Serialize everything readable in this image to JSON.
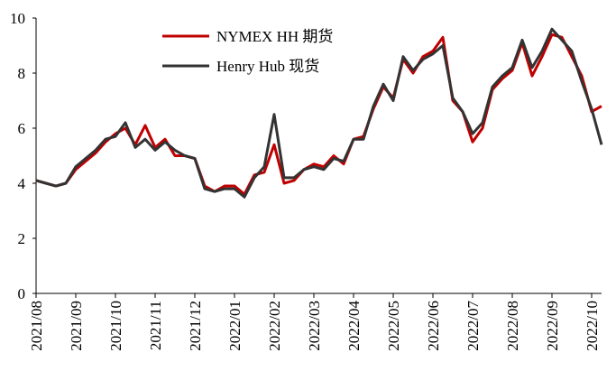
{
  "chart_data": {
    "type": "line",
    "x": [
      "2021/08",
      null,
      null,
      null,
      "2021/09",
      null,
      null,
      null,
      "2021/10",
      null,
      null,
      null,
      "2021/11",
      null,
      null,
      null,
      "2021/12",
      null,
      null,
      null,
      "2022/01",
      null,
      null,
      null,
      "2022/02",
      null,
      null,
      null,
      "2022/03",
      null,
      null,
      null,
      "2022/04",
      null,
      null,
      null,
      "2022/05",
      null,
      null,
      null,
      "2022/06",
      null,
      null,
      null,
      "2022/07",
      null,
      null,
      null,
      "2022/08",
      null,
      null,
      null,
      "2022/09",
      null,
      null,
      null,
      "2022/10",
      null
    ],
    "series": [
      {
        "name": "NYMEX HH 期货",
        "color": "#c00000",
        "values": [
          4.1,
          4.0,
          3.9,
          4.0,
          4.5,
          4.8,
          5.1,
          5.5,
          5.8,
          6.0,
          5.4,
          6.1,
          5.3,
          5.6,
          5.0,
          5.0,
          4.9,
          3.9,
          3.7,
          3.9,
          3.9,
          3.6,
          4.3,
          4.4,
          5.4,
          4.0,
          4.1,
          4.5,
          4.7,
          4.6,
          5.0,
          4.7,
          5.6,
          5.7,
          6.7,
          7.5,
          7.1,
          8.5,
          8.0,
          8.6,
          8.8,
          9.3,
          7.0,
          6.6,
          5.5,
          6.0,
          7.4,
          7.8,
          8.1,
          9.1,
          7.9,
          8.6,
          9.4,
          9.3,
          8.6,
          7.9,
          6.6,
          6.8
        ]
      },
      {
        "name": "Henry Hub 现货",
        "color": "#333333",
        "values": [
          4.1,
          4.0,
          3.9,
          4.0,
          4.6,
          4.9,
          5.2,
          5.6,
          5.7,
          6.2,
          5.3,
          5.6,
          5.2,
          5.5,
          5.2,
          5.0,
          4.9,
          3.8,
          3.7,
          3.8,
          3.8,
          3.5,
          4.2,
          4.6,
          6.5,
          4.2,
          4.2,
          4.5,
          4.6,
          4.5,
          4.9,
          4.8,
          5.6,
          5.6,
          6.8,
          7.6,
          7.0,
          8.6,
          8.1,
          8.5,
          8.7,
          9.0,
          7.1,
          6.6,
          5.8,
          6.2,
          7.5,
          7.9,
          8.2,
          9.2,
          8.2,
          8.8,
          9.6,
          9.2,
          8.8,
          7.7,
          6.7,
          5.4
        ]
      }
    ],
    "ylim": [
      0,
      10
    ],
    "yticks": [
      0,
      2,
      4,
      6,
      8,
      10
    ]
  }
}
